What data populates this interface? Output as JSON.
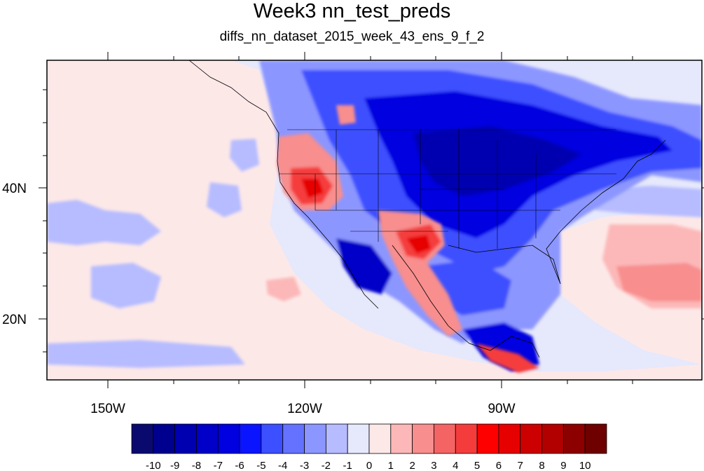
{
  "title": "Week3 nn_test_preds",
  "subtitle": "diffs_nn_dataset_2015_week_43_ens_9_f_2",
  "axes": {
    "lon_labels": [
      "150W",
      "120W",
      "90W"
    ],
    "lat_labels": [
      "40N",
      "20N"
    ]
  },
  "colorbar": {
    "labels": [
      "-10",
      "-9",
      "-8",
      "-7",
      "-6",
      "-5",
      "-4",
      "-3",
      "-2",
      "-1",
      "0",
      "1",
      "2",
      "3",
      "4",
      "5",
      "6",
      "7",
      "8",
      "9",
      "10"
    ],
    "colors": [
      "#0a0a6e",
      "#00008f",
      "#0000b0",
      "#0000c8",
      "#0000e0",
      "#0a14ff",
      "#3c50ff",
      "#6472ff",
      "#8c96ff",
      "#b6bcff",
      "#e6e8fc",
      "#fde8e8",
      "#fcb8b8",
      "#f88e8e",
      "#f46464",
      "#f53c3c",
      "#fe0000",
      "#e60000",
      "#cc0000",
      "#b20000",
      "#8c0000",
      "#6e0000"
    ]
  },
  "colors": {
    "ocean_neutral": "#e6e8fc",
    "ocean_warm": "#fde8e8",
    "frame": "#000000",
    "borders": "#000000"
  }
}
